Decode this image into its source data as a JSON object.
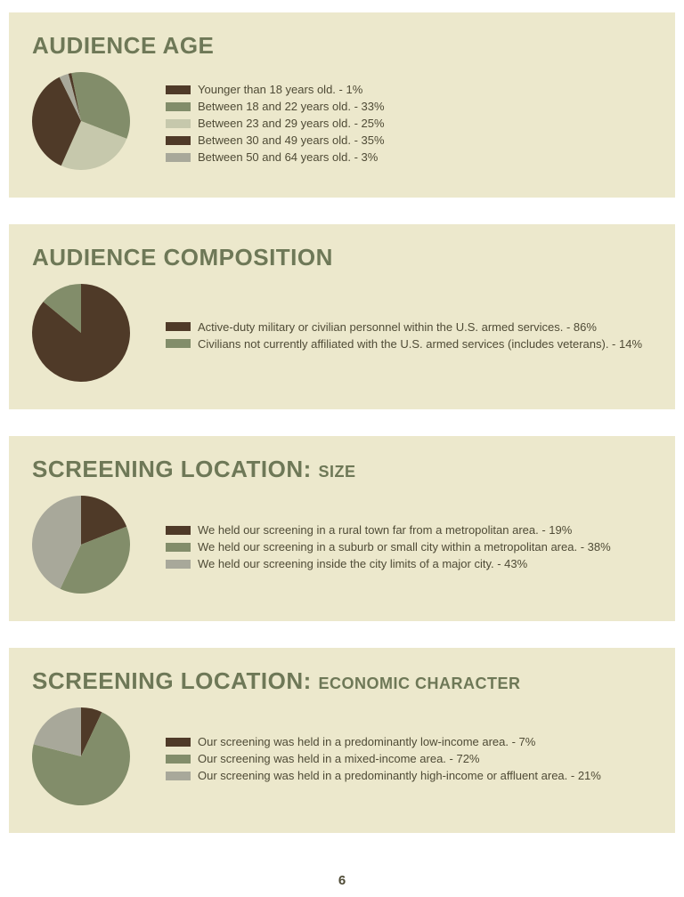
{
  "page": {
    "number": "6",
    "background": "#ffffff",
    "panel_bg": "#ece8cc"
  },
  "palette": {
    "dark_brown": "#4f3a28",
    "olive": "#828d6a",
    "light_olive": "#c6c8ac",
    "gray": "#a8a89a",
    "title": "#6e7857",
    "text": "#4f4b36"
  },
  "panels": [
    {
      "title": "AUDIENCE AGE",
      "subtitle": "",
      "pie_radius": 55,
      "start_angle": -105,
      "slices": [
        {
          "label": "Younger than 18 years old. - 1%",
          "value": 1,
          "color": "#4f3a28"
        },
        {
          "label": "Between 18 and 22 years old. - 33%",
          "value": 33,
          "color": "#828d6a"
        },
        {
          "label": "Between 23 and 29 years old. - 25%",
          "value": 25,
          "color": "#c6c8ac"
        },
        {
          "label": "Between 30 and 49 years old. - 35%",
          "value": 35,
          "color": "#4f3a28"
        },
        {
          "label": "Between 50 and 64 years old. - 3%",
          "value": 3,
          "color": "#a8a89a"
        }
      ]
    },
    {
      "title": "AUDIENCE COMPOSITION",
      "subtitle": "",
      "pie_radius": 55,
      "start_angle": -90,
      "slices": [
        {
          "label": "Active-duty military or civilian personnel within the U.S. armed services. - 86%",
          "value": 86,
          "color": "#4f3a28"
        },
        {
          "label": "Civilians not currently affiliated with the U.S. armed services (includes veterans). - 14%",
          "value": 14,
          "color": "#828d6a"
        }
      ]
    },
    {
      "title": "SCREENING LOCATION:",
      "subtitle": "SIZE",
      "pie_radius": 55,
      "start_angle": -90,
      "slices": [
        {
          "label": "We held our screening in a rural town far from a metropolitan area. - 19%",
          "value": 19,
          "color": "#4f3a28"
        },
        {
          "label": "We held our screening in a suburb or small city within a metropolitan area. - 38%",
          "value": 38,
          "color": "#828d6a"
        },
        {
          "label": "We held our screening inside the city limits of a major city. - 43%",
          "value": 43,
          "color": "#a8a89a"
        }
      ]
    },
    {
      "title": "SCREENING LOCATION:",
      "subtitle": "ECONOMIC CHARACTER",
      "pie_radius": 55,
      "start_angle": -90,
      "slices": [
        {
          "label": "Our screening was held in a predominantly low-income area. - 7%",
          "value": 7,
          "color": "#4f3a28"
        },
        {
          "label": "Our screening was held in a mixed-income area. - 72%",
          "value": 72,
          "color": "#828d6a"
        },
        {
          "label": "Our screening was held in a predominantly high-income or affluent area. - 21%",
          "value": 21,
          "color": "#a8a89a"
        }
      ]
    }
  ]
}
